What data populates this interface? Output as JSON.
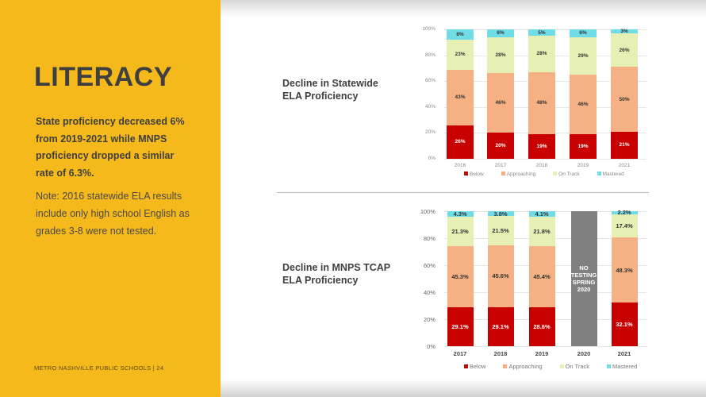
{
  "sidebar": {
    "title": "LITERACY",
    "lead": "State proficiency decreased 6% from 2019-2021 while MNPS proficiency dropped a similar rate of 6.3%.",
    "note": "Note: 2016 statewide ELA results include only high school English as grades 3-8 were not tested.",
    "footer": "METRO NASHVILLE PUBLIC SCHOOLS  |  24"
  },
  "colors": {
    "sidebar": "#F5B91B",
    "Below": "#C80000",
    "Approaching": "#F5B083",
    "On Track": "#E6EFB4",
    "Mastered": "#6FDCE6",
    "NoTesting": "#808080"
  },
  "chart_data": [
    {
      "type": "bar",
      "stacked": true,
      "title": "Decline in Statewide ELA Proficiency",
      "categories": [
        "2016",
        "2017",
        "2018",
        "2019",
        "2021"
      ],
      "yticks": [
        "0%",
        "20%",
        "40%",
        "60%",
        "80%",
        "100%"
      ],
      "ylim": [
        0,
        100
      ],
      "legend": "bottom",
      "series": [
        {
          "name": "Below",
          "values": [
            26,
            20,
            19,
            19,
            21
          ],
          "labels": [
            "26%",
            "20%",
            "19%",
            "19%",
            "21%"
          ]
        },
        {
          "name": "Approaching",
          "values": [
            43,
            46,
            48,
            46,
            50
          ],
          "labels": [
            "43%",
            "46%",
            "48%",
            "46%",
            "50%"
          ]
        },
        {
          "name": "On Track",
          "values": [
            23,
            28,
            28,
            29,
            26
          ],
          "labels": [
            "23%",
            "28%",
            "28%",
            "29%",
            "26%"
          ]
        },
        {
          "name": "Mastered",
          "values": [
            8,
            6,
            5,
            6,
            3
          ],
          "labels": [
            "8%",
            "6%",
            "5%",
            "6%",
            "3%"
          ]
        }
      ]
    },
    {
      "type": "bar",
      "stacked": true,
      "title": "Decline in MNPS TCAP ELA Proficiency",
      "categories": [
        "2017",
        "2018",
        "2019",
        "2020",
        "2021"
      ],
      "yticks": [
        "0%",
        "20%",
        "40%",
        "60%",
        "80%",
        "100%"
      ],
      "ylim": [
        0,
        100
      ],
      "legend": "bottom",
      "annotation": {
        "category": "2020",
        "text": "NO TESTING SPRING 2020"
      },
      "series": [
        {
          "name": "Below",
          "values": [
            29.1,
            29.1,
            28.6,
            null,
            32.1
          ],
          "labels": [
            "29.1%",
            "29.1%",
            "28.6%",
            "",
            "32.1%"
          ]
        },
        {
          "name": "Approaching",
          "values": [
            45.3,
            45.6,
            45.4,
            null,
            48.3
          ],
          "labels": [
            "45.3%",
            "45.6%",
            "45.4%",
            "",
            "48.3%"
          ]
        },
        {
          "name": "On Track",
          "values": [
            21.3,
            21.5,
            21.8,
            null,
            17.4
          ],
          "labels": [
            "21.3%",
            "21.5%",
            "21.8%",
            "",
            "17.4%"
          ]
        },
        {
          "name": "Mastered",
          "values": [
            4.3,
            3.8,
            4.1,
            null,
            2.2
          ],
          "labels": [
            "4.3%",
            "3.8%",
            "4.1%",
            "",
            "2.2%"
          ]
        }
      ]
    }
  ]
}
